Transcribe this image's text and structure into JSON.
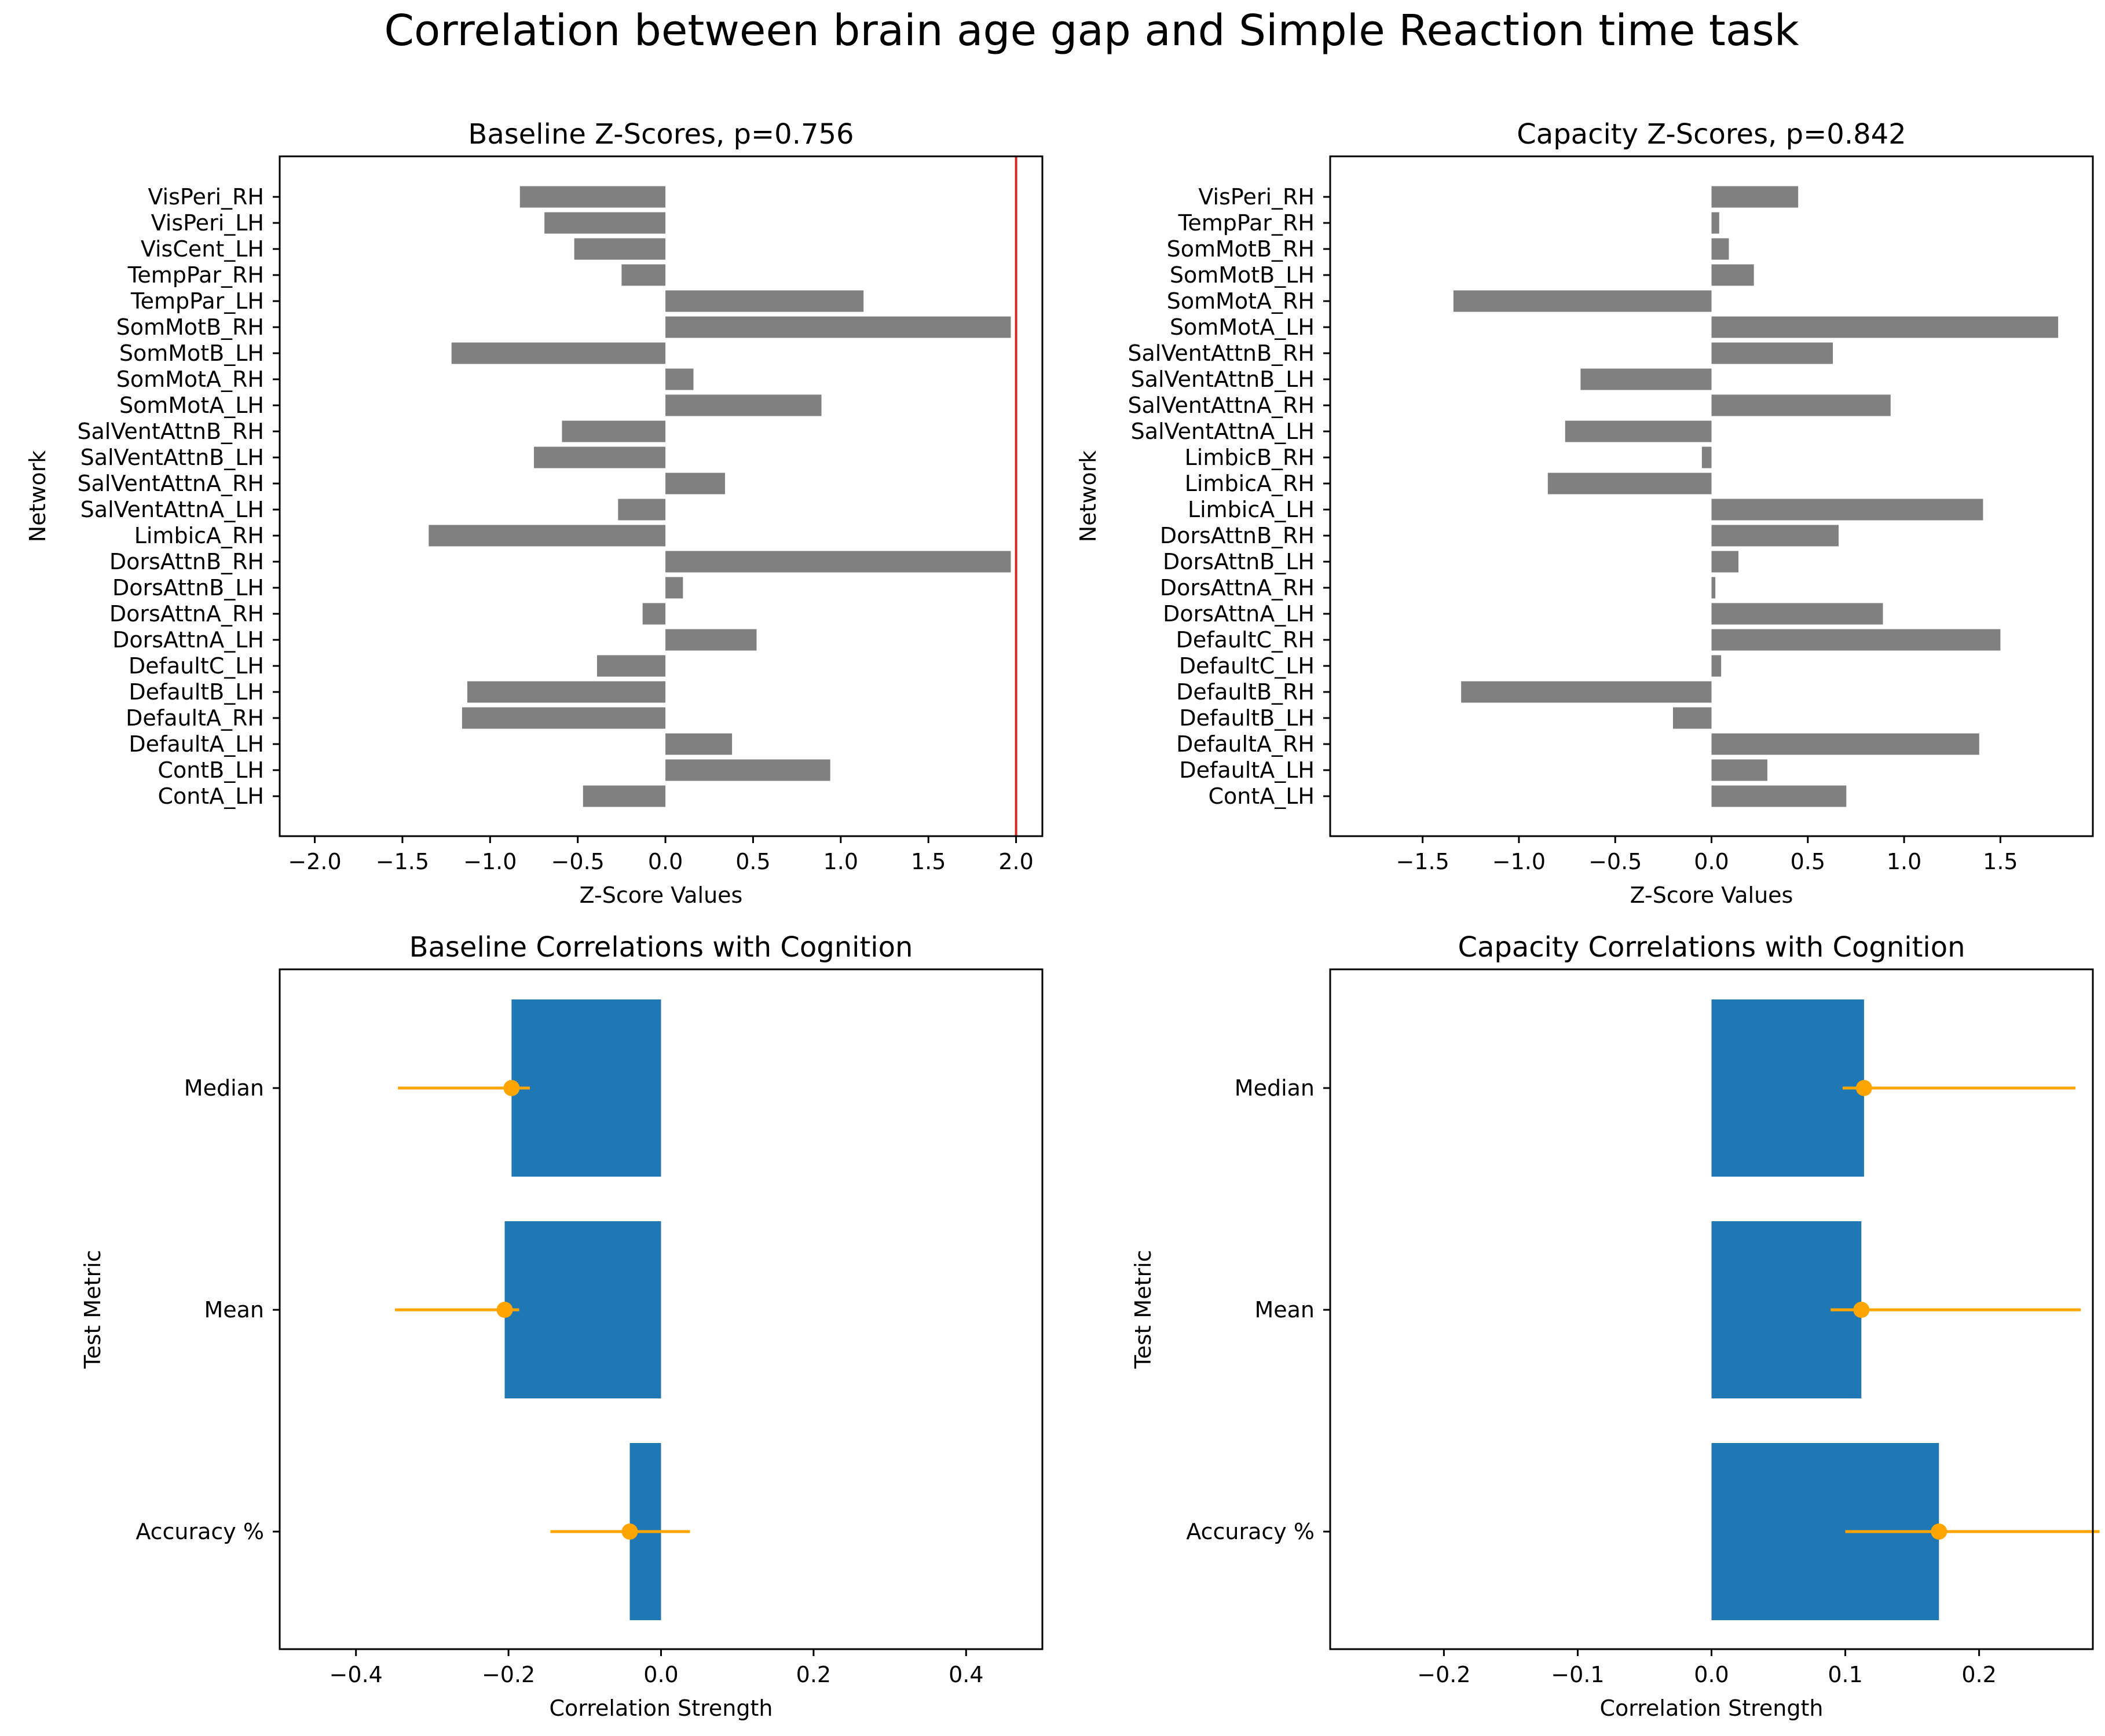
{
  "figure_title": "Correlation between brain age gap and Simple Reaction time task",
  "colors": {
    "bar": "#808080",
    "corr_bar": "#1f77b4",
    "error": "#ffa500",
    "threshold": "#d62728"
  },
  "chart_data": [
    {
      "id": "baseline_z",
      "type": "bar",
      "orientation": "horizontal",
      "title": "Baseline Z-Scores, p=0.756",
      "xlabel": "Z-Score Values",
      "ylabel": "Network",
      "xlim": [
        -2.2,
        2.15
      ],
      "xticks": [
        -2.0,
        -1.5,
        -1.0,
        -0.5,
        0.0,
        0.5,
        1.0,
        1.5,
        2.0
      ],
      "xtick_labels": [
        "−2.0",
        "−1.5",
        "−1.0",
        "−0.5",
        "0.0",
        "0.5",
        "1.0",
        "1.5",
        "2.0"
      ],
      "threshold_line": 2.0,
      "categories": [
        "VisPeri_RH",
        "VisPeri_LH",
        "VisCent_LH",
        "TempPar_RH",
        "TempPar_LH",
        "SomMotB_RH",
        "SomMotB_LH",
        "SomMotA_RH",
        "SomMotA_LH",
        "SalVentAttnB_RH",
        "SalVentAttnB_LH",
        "SalVentAttnA_RH",
        "SalVentAttnA_LH",
        "LimbicA_RH",
        "DorsAttnB_RH",
        "DorsAttnB_LH",
        "DorsAttnA_RH",
        "DorsAttnA_LH",
        "DefaultC_LH",
        "DefaultB_LH",
        "DefaultA_RH",
        "DefaultA_LH",
        "ContB_LH",
        "ContA_LH"
      ],
      "values": [
        -0.83,
        -0.69,
        -0.52,
        -0.25,
        1.13,
        1.97,
        -1.22,
        0.16,
        0.89,
        -0.59,
        -0.75,
        0.34,
        -0.27,
        -1.35,
        1.97,
        0.1,
        -0.13,
        0.52,
        -0.39,
        -1.13,
        -1.16,
        0.38,
        0.94,
        -0.47
      ]
    },
    {
      "id": "capacity_z",
      "type": "bar",
      "orientation": "horizontal",
      "title": "Capacity Z-Scores, p=0.842",
      "xlabel": "Z-Score Values",
      "ylabel": "Network",
      "xlim": [
        -1.98,
        1.98
      ],
      "xticks": [
        -1.5,
        -1.0,
        -0.5,
        0.0,
        0.5,
        1.0,
        1.5
      ],
      "xtick_labels": [
        "−1.5",
        "−1.0",
        "−0.5",
        "0.0",
        "0.5",
        "1.0",
        "1.5"
      ],
      "categories": [
        "VisPeri_RH",
        "TempPar_RH",
        "SomMotB_RH",
        "SomMotB_LH",
        "SomMotA_RH",
        "SomMotA_LH",
        "SalVentAttnB_RH",
        "SalVentAttnB_LH",
        "SalVentAttnA_RH",
        "SalVentAttnA_LH",
        "LimbicB_RH",
        "LimbicA_RH",
        "LimbicA_LH",
        "DorsAttnB_RH",
        "DorsAttnB_LH",
        "DorsAttnA_RH",
        "DorsAttnA_LH",
        "DefaultC_RH",
        "DefaultC_LH",
        "DefaultB_RH",
        "DefaultB_LH",
        "DefaultA_RH",
        "DefaultA_LH",
        "ContA_LH"
      ],
      "values": [
        0.45,
        0.04,
        0.09,
        0.22,
        -1.34,
        1.8,
        0.63,
        -0.68,
        0.93,
        -0.76,
        -0.05,
        -0.85,
        1.41,
        0.66,
        0.14,
        0.02,
        0.89,
        1.5,
        0.05,
        -1.3,
        -0.2,
        1.39,
        0.29,
        0.7
      ]
    },
    {
      "id": "baseline_corr",
      "type": "bar",
      "orientation": "horizontal",
      "title": "Baseline Correlations with Cognition",
      "xlabel": "Correlation Strength",
      "ylabel": "Test Metric",
      "xlim": [
        -0.5,
        0.5
      ],
      "xticks": [
        -0.4,
        -0.2,
        0.0,
        0.2,
        0.4
      ],
      "xtick_labels": [
        "−0.4",
        "−0.2",
        "0.0",
        "0.2",
        "0.4"
      ],
      "categories": [
        "Median",
        "Mean",
        "Accuracy %"
      ],
      "values": [
        -0.196,
        -0.205,
        -0.041
      ],
      "ci_low": [
        -0.345,
        -0.349,
        -0.145
      ],
      "ci_high": [
        -0.172,
        -0.186,
        0.038
      ]
    },
    {
      "id": "capacity_corr",
      "type": "bar",
      "orientation": "horizontal",
      "title": "Capacity Correlations with Cognition",
      "xlabel": "Correlation Strength",
      "ylabel": "Test Metric",
      "xlim": [
        -0.285,
        0.285
      ],
      "xticks": [
        -0.2,
        -0.1,
        0.0,
        0.1,
        0.2
      ],
      "xtick_labels": [
        "−0.2",
        "−0.1",
        "0.0",
        "0.1",
        "0.2"
      ],
      "categories": [
        "Median",
        "Mean",
        "Accuracy %"
      ],
      "values": [
        0.114,
        0.112,
        0.17
      ],
      "ci_low": [
        0.098,
        0.089,
        0.1
      ],
      "ci_high": [
        0.272,
        0.276,
        0.29
      ]
    }
  ]
}
